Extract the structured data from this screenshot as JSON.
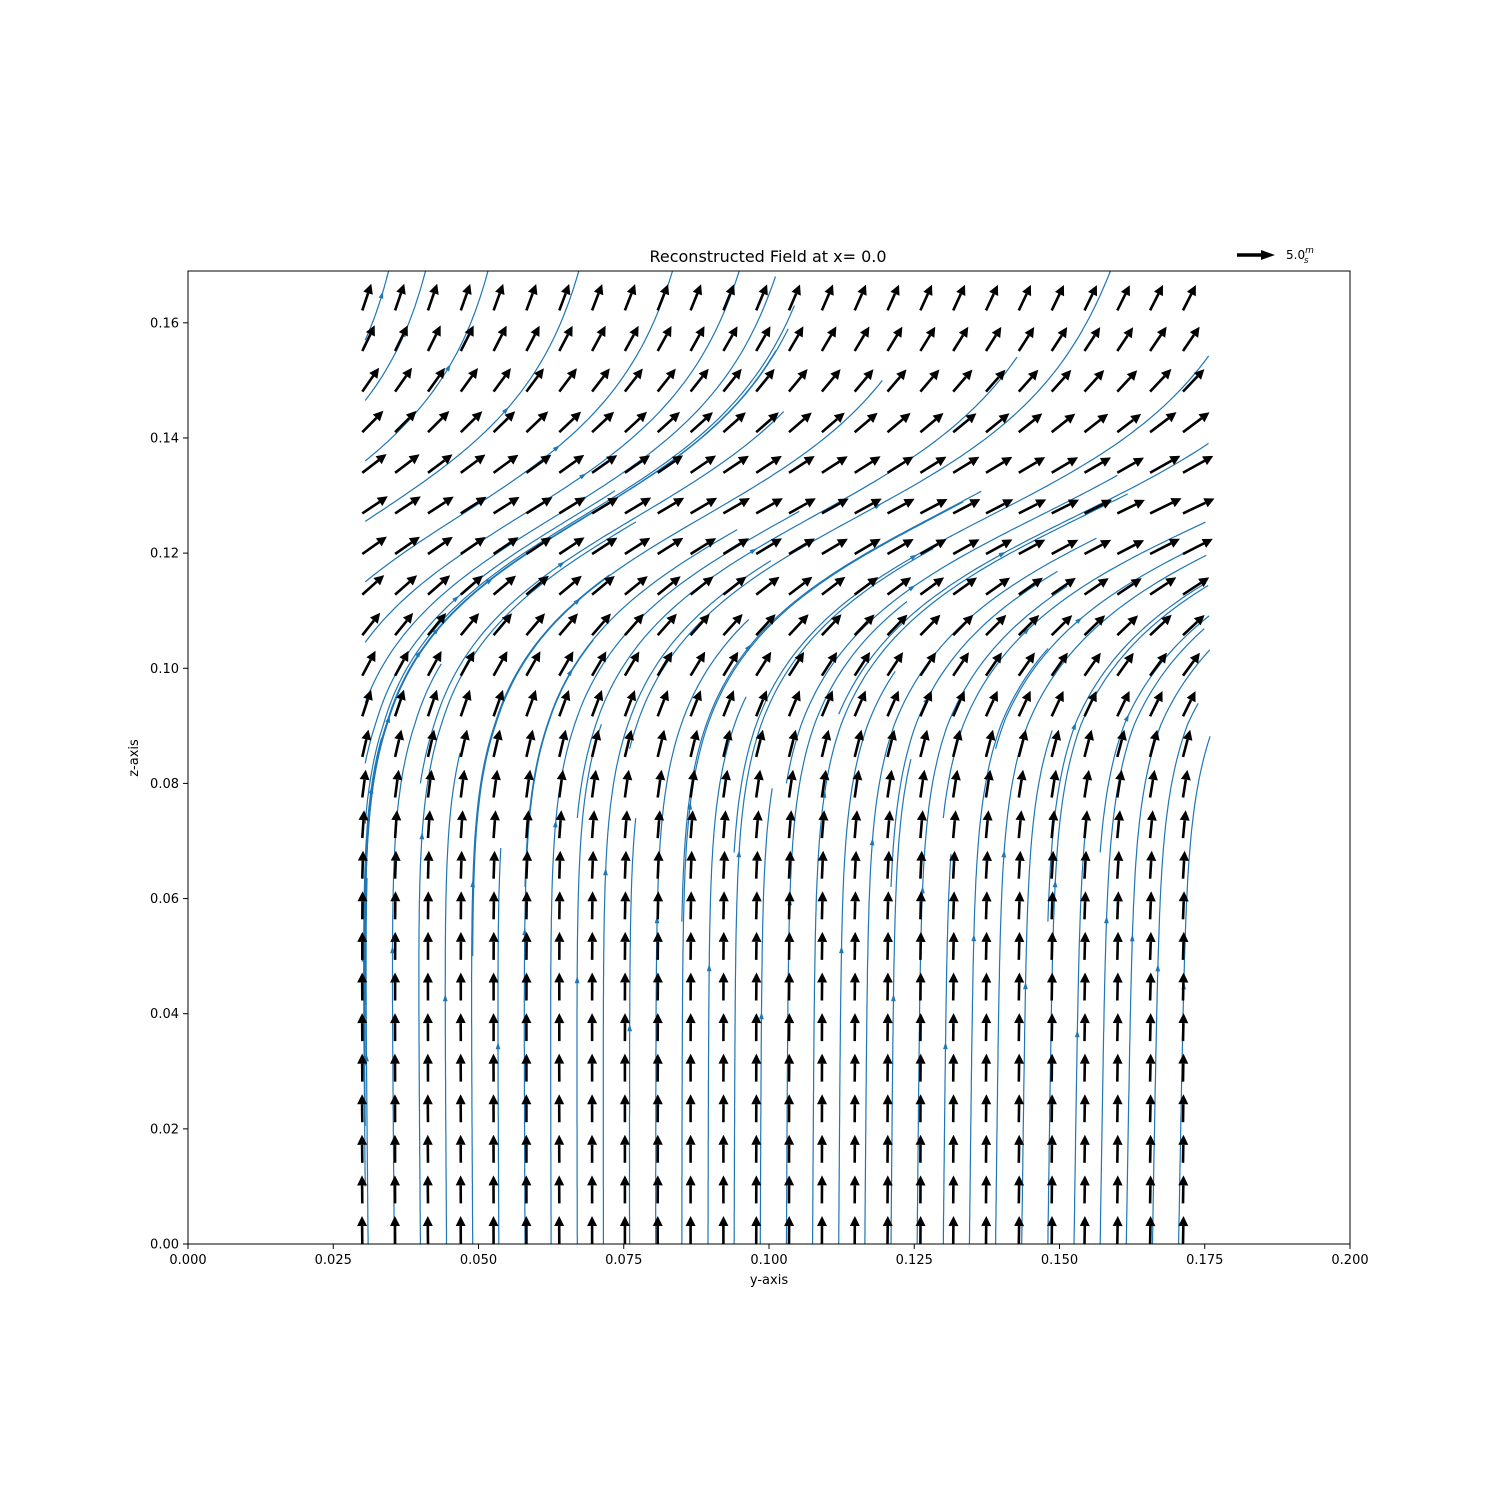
{
  "chart_data": {
    "type": "quiver",
    "title": "Reconstructed Field at x= 0.0",
    "xlabel": "y-axis",
    "ylabel": "z-axis",
    "xlim": [
      0.0,
      0.2
    ],
    "ylim": [
      0.0,
      0.169
    ],
    "xticks": [
      "0.000",
      "0.025",
      "0.050",
      "0.075",
      "0.100",
      "0.125",
      "0.150",
      "0.175",
      "0.200"
    ],
    "yticks": [
      "0.00",
      "0.02",
      "0.04",
      "0.06",
      "0.08",
      "0.10",
      "0.12",
      "0.14",
      "0.16"
    ],
    "grid": false,
    "quiver_key": {
      "value": 5.0,
      "label": "5.0",
      "unit_num": "m",
      "unit_den": "s",
      "placement": "top-right"
    },
    "field_domain": {
      "y": [
        0.03,
        0.172
      ],
      "z": [
        0.0,
        0.167
      ]
    },
    "grid_spacing": {
      "y": 0.00565,
      "z": 0.00705
    },
    "field_description": "Vertical upward flow (~5 m/s) in lower region, curving to the right (toward +y) above z~0.08; strongest rightward tilt near z~0.12-0.13.",
    "colors": {
      "arrows": "#000000",
      "streamlines": "#1f77b4",
      "axes": "#000000"
    }
  }
}
